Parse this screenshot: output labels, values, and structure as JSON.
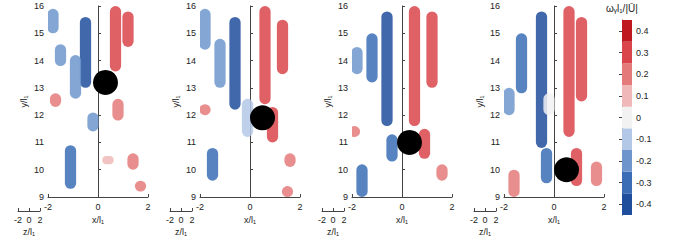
{
  "chart_data": {
    "type": "isosurface",
    "xlabel": "x/l₁",
    "ylabel": "y/l₁",
    "zlabel": "z/l₁",
    "xlim": [
      -2,
      2
    ],
    "xticks": [
      -2,
      0,
      2
    ],
    "ylim": [
      9,
      16
    ],
    "yticks": [
      9,
      10,
      11,
      12,
      13,
      14,
      15,
      16
    ],
    "zlim": [
      -2,
      2
    ],
    "zticks": [
      -2,
      0,
      2
    ],
    "colorbar": {
      "label": "ωᵧl₁/|Ū|",
      "range": [
        -0.45,
        0.45
      ],
      "ticks": [
        -0.4,
        -0.3,
        -0.2,
        -0.1,
        0,
        0.1,
        0.2,
        0.3,
        0.4
      ],
      "bounds": [
        -0.45,
        -0.35,
        -0.25,
        -0.15,
        -0.05,
        0.05,
        0.15,
        0.25,
        0.35,
        0.45
      ],
      "colors": [
        "#1f4e9c",
        "#3a6db5",
        "#6f96cc",
        "#b3c8e6",
        "#f2f2f2",
        "#f0b8b8",
        "#e57a7a",
        "#d9454a",
        "#c0181f"
      ]
    },
    "panels": [
      {
        "sphere": {
          "x": 0.3,
          "y": 13.2,
          "radius": 0.5
        },
        "structures": [
          [
            -0.5,
            13.0,
            15.6,
            -0.35
          ],
          [
            -0.9,
            12.6,
            14.2,
            -0.2
          ],
          [
            0.7,
            13.6,
            16.0,
            0.35
          ],
          [
            1.2,
            14.5,
            15.8,
            0.3
          ],
          [
            0.8,
            11.8,
            12.6,
            0.25
          ],
          [
            -1.5,
            13.8,
            14.6,
            -0.2
          ],
          [
            -1.8,
            15.0,
            15.9,
            -0.15
          ],
          [
            -1.1,
            9.3,
            10.9,
            -0.3
          ],
          [
            -0.2,
            11.4,
            12.1,
            -0.2
          ],
          [
            1.4,
            10.0,
            10.6,
            0.2
          ],
          [
            -1.7,
            12.3,
            12.8,
            0.2
          ],
          [
            1.7,
            9.2,
            9.6,
            0.25
          ],
          [
            0.4,
            10.2,
            10.5,
            0.1
          ]
        ]
      },
      {
        "sphere": {
          "x": 0.5,
          "y": 11.9,
          "radius": 0.5
        },
        "structures": [
          [
            -0.6,
            12.2,
            15.6,
            -0.35
          ],
          [
            -1.2,
            13.0,
            14.8,
            -0.2
          ],
          [
            0.6,
            12.4,
            16.0,
            0.35
          ],
          [
            1.3,
            13.5,
            15.5,
            0.3
          ],
          [
            0.9,
            11.0,
            12.3,
            0.3
          ],
          [
            -0.1,
            11.2,
            12.6,
            -0.1
          ],
          [
            -1.8,
            14.4,
            15.9,
            -0.2
          ],
          [
            -1.5,
            9.6,
            10.8,
            -0.3
          ],
          [
            1.6,
            10.1,
            10.6,
            0.2
          ],
          [
            -1.8,
            12.0,
            12.4,
            0.2
          ],
          [
            1.5,
            9.0,
            9.4,
            0.25
          ]
        ]
      },
      {
        "sphere": {
          "x": 0.3,
          "y": 11.0,
          "radius": 0.5
        },
        "structures": [
          [
            -0.6,
            11.6,
            15.8,
            -0.35
          ],
          [
            -1.2,
            13.2,
            15.0,
            -0.25
          ],
          [
            0.5,
            11.6,
            16.0,
            0.35
          ],
          [
            1.2,
            13.0,
            15.8,
            0.3
          ],
          [
            0.9,
            10.4,
            11.5,
            0.3
          ],
          [
            -0.4,
            10.3,
            11.3,
            -0.3
          ],
          [
            -1.8,
            13.5,
            14.5,
            -0.2
          ],
          [
            -1.6,
            9.0,
            10.2,
            -0.25
          ],
          [
            1.6,
            9.6,
            10.2,
            0.2
          ],
          [
            -1.9,
            11.2,
            11.6,
            0.2
          ]
        ]
      },
      {
        "sphere": {
          "x": 0.5,
          "y": 10.0,
          "radius": 0.5
        },
        "structures": [
          [
            -0.5,
            10.8,
            15.8,
            -0.35
          ],
          [
            -1.3,
            12.8,
            15.0,
            -0.25
          ],
          [
            0.6,
            11.2,
            16.0,
            0.35
          ],
          [
            1.1,
            12.5,
            15.6,
            0.3
          ],
          [
            0.9,
            9.4,
            10.8,
            0.35
          ],
          [
            -0.3,
            9.5,
            10.8,
            -0.3
          ],
          [
            -1.8,
            12.0,
            13.0,
            -0.2
          ],
          [
            -1.6,
            9.0,
            10.0,
            0.2
          ],
          [
            1.7,
            9.4,
            10.3,
            0.2
          ],
          [
            -0.2,
            12.0,
            12.8,
            0.05
          ]
        ]
      }
    ]
  }
}
